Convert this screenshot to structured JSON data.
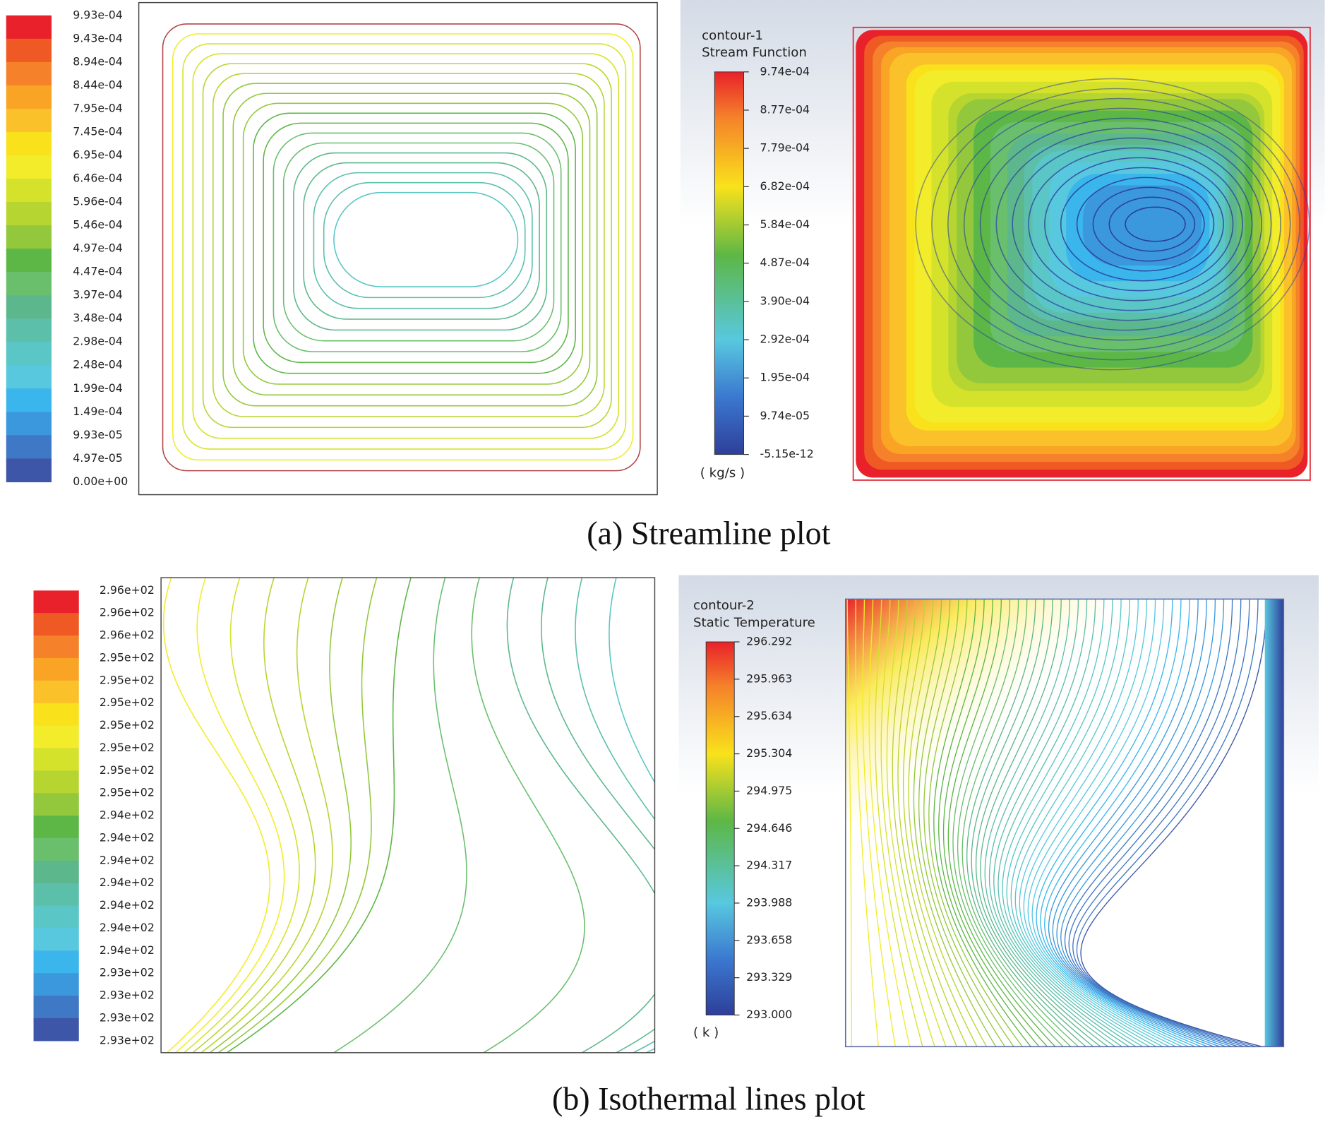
{
  "panels": [
    {
      "caption": "(a) Streamline plot",
      "left": {
        "legend_labels": [
          "9.93e-04",
          "9.43e-04",
          "8.94e-04",
          "8.44e-04",
          "7.95e-04",
          "7.45e-04",
          "6.95e-04",
          "6.46e-04",
          "5.96e-04",
          "5.46e-04",
          "4.97e-04",
          "4.47e-04",
          "3.97e-04",
          "3.48e-04",
          "2.98e-04",
          "2.48e-04",
          "1.99e-04",
          "1.49e-04",
          "9.93e-05",
          "4.97e-05",
          "0.00e+00"
        ]
      },
      "right": {
        "title": "contour-1",
        "variable": "Stream Function",
        "legend_labels": [
          "9.74e-04",
          "8.77e-04",
          "7.79e-04",
          "6.82e-04",
          "5.84e-04",
          "4.87e-04",
          "3.90e-04",
          "2.92e-04",
          "1.95e-04",
          "9.74e-05",
          "-5.15e-12"
        ],
        "unit": "( kg/s )"
      }
    },
    {
      "caption": "(b) Isothermal lines plot",
      "left": {
        "legend_labels": [
          "2.96e+02",
          "2.96e+02",
          "2.96e+02",
          "2.95e+02",
          "2.95e+02",
          "2.95e+02",
          "2.95e+02",
          "2.95e+02",
          "2.95e+02",
          "2.95e+02",
          "2.94e+02",
          "2.94e+02",
          "2.94e+02",
          "2.94e+02",
          "2.94e+02",
          "2.94e+02",
          "2.94e+02",
          "2.93e+02",
          "2.93e+02",
          "2.93e+02",
          "2.93e+02"
        ]
      },
      "right": {
        "title": "contour-2",
        "variable": "Static Temperature",
        "legend_labels": [
          "296.292",
          "295.963",
          "295.634",
          "295.304",
          "294.975",
          "294.646",
          "294.317",
          "293.988",
          "293.658",
          "293.329",
          "293.000"
        ],
        "unit": "( k )"
      }
    }
  ]
}
